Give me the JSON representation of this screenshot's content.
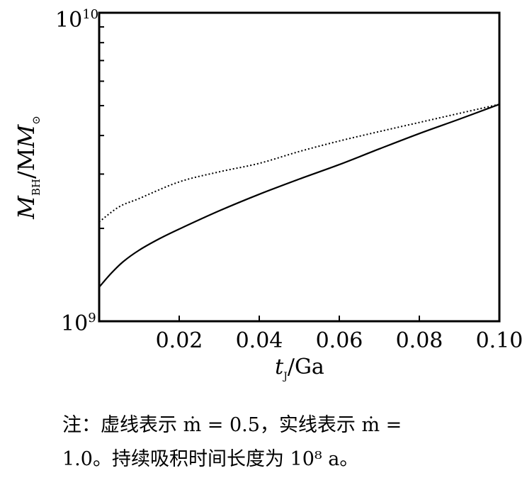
{
  "chart_data": {
    "type": "line",
    "xlabel_main": "t",
    "xlabel_sub": "J",
    "xlabel_unit": "/Ga",
    "ylabel_main": "M",
    "ylabel_sub": "BH",
    "ylabel_rest": "/M",
    "ylabel_sun": "⊙",
    "xlim": [
      0,
      0.1
    ],
    "ylim": [
      1000000000.0,
      10000000000.0
    ],
    "yscale": "log",
    "grid": false,
    "x_ticks": [
      "0.02",
      "0.04",
      "0.06",
      "0.08",
      "0.10"
    ],
    "x_tick_values": [
      0.02,
      0.04,
      0.06,
      0.08,
      0.1
    ],
    "y_ticks": [
      {
        "base": "10",
        "exp": "9"
      },
      {
        "base": "10",
        "exp": "10"
      }
    ],
    "series": [
      {
        "style": "dotted",
        "x": [
          0,
          0.005,
          0.01,
          0.02,
          0.03,
          0.04,
          0.05,
          0.06,
          0.07,
          0.08,
          0.09,
          0.1
        ],
        "y": [
          2100000000.0,
          2350000000.0,
          2500000000.0,
          2830000000.0,
          3050000000.0,
          3250000000.0,
          3550000000.0,
          3840000000.0,
          4120000000.0,
          4410000000.0,
          4720000000.0,
          5050000000.0
        ]
      },
      {
        "style": "solid",
        "x": [
          0,
          0.003,
          0.006,
          0.01,
          0.015,
          0.02,
          0.03,
          0.04,
          0.05,
          0.06,
          0.07,
          0.08,
          0.09,
          0.1
        ],
        "y": [
          1290000000.0,
          1430000000.0,
          1560000000.0,
          1700000000.0,
          1850000000.0,
          1990000000.0,
          2280000000.0,
          2580000000.0,
          2890000000.0,
          3220000000.0,
          3620000000.0,
          4060000000.0,
          4520000000.0,
          5050000000.0
        ]
      }
    ]
  },
  "caption": {
    "line1": "注：虚线表示 ṁ = 0.5，实线表示 ṁ =",
    "line2": "1.0。持续吸积时间长度为 10⁸ a。"
  }
}
